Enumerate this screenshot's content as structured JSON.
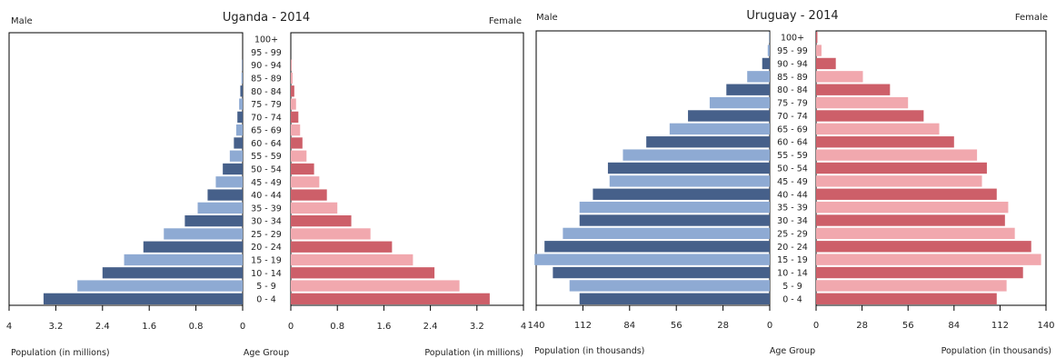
{
  "chart_data": [
    {
      "type": "bar",
      "orientation": "population-pyramid",
      "title": "Uganda - 2014",
      "male_label": "Male",
      "female_label": "Female",
      "left_axis_label": "Population (in millions)",
      "center_axis_label": "Age Group",
      "right_axis_label": "Population (in millions)",
      "xlim": [
        0,
        4
      ],
      "ticks": [
        "4",
        "3.2",
        "2.4",
        "1.6",
        "0.8",
        "0"
      ],
      "tick_values": [
        4,
        3.2,
        2.4,
        1.6,
        0.8,
        0
      ],
      "right_ticks": [
        "0",
        "0.8",
        "1.6",
        "2.4",
        "3.2",
        "4"
      ],
      "right_tick_values": [
        0,
        0.8,
        1.6,
        2.4,
        3.2,
        4
      ],
      "categories": [
        "100+",
        "95 - 99",
        "90 - 94",
        "85 - 89",
        "80 - 84",
        "75 - 79",
        "70 - 74",
        "65 - 69",
        "60 - 64",
        "55 - 59",
        "50 - 54",
        "45 - 49",
        "40 - 44",
        "35 - 39",
        "30 - 34",
        "25 - 29",
        "20 - 24",
        "15 - 19",
        "10 - 14",
        "5 - 9",
        "0 - 4"
      ],
      "series": [
        {
          "name": "Male",
          "values": [
            0,
            0,
            0.01,
            0.02,
            0.04,
            0.06,
            0.09,
            0.11,
            0.15,
            0.22,
            0.34,
            0.46,
            0.6,
            0.77,
            0.99,
            1.35,
            1.7,
            2.03,
            2.4,
            2.83,
            3.41
          ]
        },
        {
          "name": "Female",
          "values": [
            0,
            0,
            0.01,
            0.03,
            0.06,
            0.09,
            0.13,
            0.16,
            0.2,
            0.27,
            0.4,
            0.49,
            0.62,
            0.8,
            1.04,
            1.37,
            1.74,
            2.1,
            2.47,
            2.9,
            3.42
          ]
        }
      ]
    },
    {
      "type": "bar",
      "orientation": "population-pyramid",
      "title": "Uruguay - 2014",
      "male_label": "Male",
      "female_label": "Female",
      "left_axis_label": "Population (in thousands)",
      "center_axis_label": "Age Group",
      "right_axis_label": "Population (in thousands)",
      "xlim": [
        0,
        140
      ],
      "ticks": [
        "140",
        "112",
        "84",
        "56",
        "28",
        "0"
      ],
      "tick_values": [
        140,
        112,
        84,
        56,
        28,
        0
      ],
      "right_ticks": [
        "0",
        "28",
        "56",
        "84",
        "112",
        "140"
      ],
      "right_tick_values": [
        0,
        28,
        56,
        84,
        112,
        140
      ],
      "categories": [
        "100+",
        "95 - 99",
        "90 - 94",
        "85 - 89",
        "80 - 84",
        "75 - 79",
        "70 - 74",
        "65 - 69",
        "60 - 64",
        "55 - 59",
        "50 - 54",
        "45 - 49",
        "40 - 44",
        "35 - 39",
        "30 - 34",
        "25 - 29",
        "20 - 24",
        "15 - 19",
        "10 - 14",
        "5 - 9",
        "0 - 4"
      ],
      "series": [
        {
          "name": "Male",
          "values": [
            0.3,
            1.2,
            4.5,
            13.5,
            26,
            36,
            49,
            60,
            74,
            88,
            97,
            96,
            106,
            114,
            114,
            124,
            135,
            141,
            130,
            120,
            114
          ]
        },
        {
          "name": "Female",
          "values": [
            0.8,
            3.3,
            12,
            28.5,
            45,
            56,
            65.5,
            75,
            84,
            98,
            104,
            101,
            110,
            117,
            115,
            121,
            131,
            137,
            126,
            116,
            110
          ]
        }
      ]
    }
  ],
  "colors": {
    "male_light": "#8eaad3",
    "male_dark": "#46608a",
    "female_light": "#f1a8ae",
    "female_dark": "#cd5f69",
    "axis": "#000000"
  }
}
